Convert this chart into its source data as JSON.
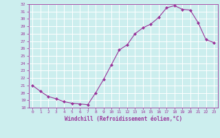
{
  "x": [
    0,
    1,
    2,
    3,
    4,
    5,
    6,
    7,
    8,
    9,
    10,
    11,
    12,
    13,
    14,
    15,
    16,
    17,
    18,
    19,
    20,
    21,
    22,
    23
  ],
  "y": [
    21.0,
    20.2,
    19.5,
    19.2,
    18.8,
    18.6,
    18.5,
    18.4,
    20.0,
    21.8,
    23.8,
    25.8,
    26.5,
    28.0,
    28.8,
    29.3,
    30.2,
    31.5,
    31.8,
    31.3,
    31.2,
    29.5,
    27.2,
    26.8
  ],
  "line_color": "#993399",
  "marker": "D",
  "marker_size": 2,
  "bg_color": "#cceeee",
  "grid_color": "#ffffff",
  "xlabel": "Windchill (Refroidissement éolien,°C)",
  "xlabel_color": "#993399",
  "tick_color": "#993399",
  "ylim": [
    18,
    32
  ],
  "xlim": [
    -0.5,
    23.5
  ],
  "yticks": [
    18,
    19,
    20,
    21,
    22,
    23,
    24,
    25,
    26,
    27,
    28,
    29,
    30,
    31,
    32
  ],
  "xticks": [
    0,
    1,
    2,
    3,
    4,
    5,
    6,
    7,
    8,
    9,
    10,
    11,
    12,
    13,
    14,
    15,
    16,
    17,
    18,
    19,
    20,
    21,
    22,
    23
  ]
}
